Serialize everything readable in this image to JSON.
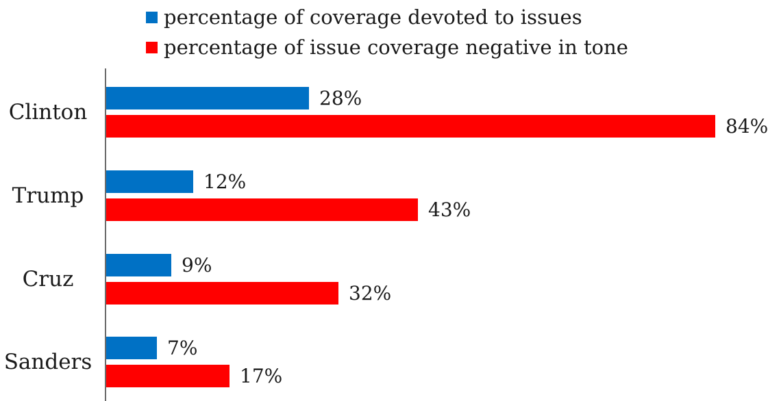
{
  "chart_data": {
    "type": "bar",
    "orientation": "horizontal",
    "title": "",
    "xlabel": "",
    "ylabel": "",
    "xlim": [
      0,
      90
    ],
    "grid": false,
    "legend_position": "top",
    "categories": [
      "Clinton",
      "Trump",
      "Cruz",
      "Sanders"
    ],
    "series": [
      {
        "name": "percentage of coverage devoted to issues",
        "color": "#0071C5",
        "values": [
          28,
          12,
          9,
          7
        ],
        "labels": [
          "28%",
          "12%",
          "9%",
          "7%"
        ]
      },
      {
        "name": "percentage of issue coverage negative in tone",
        "color": "#FF0000",
        "values": [
          84,
          43,
          32,
          17
        ],
        "labels": [
          "84%",
          "43%",
          "32%",
          "17%"
        ]
      }
    ]
  },
  "colors": {
    "axis": "#6b6b6b",
    "text": "#1a1a1a",
    "background": "#ffffff"
  }
}
